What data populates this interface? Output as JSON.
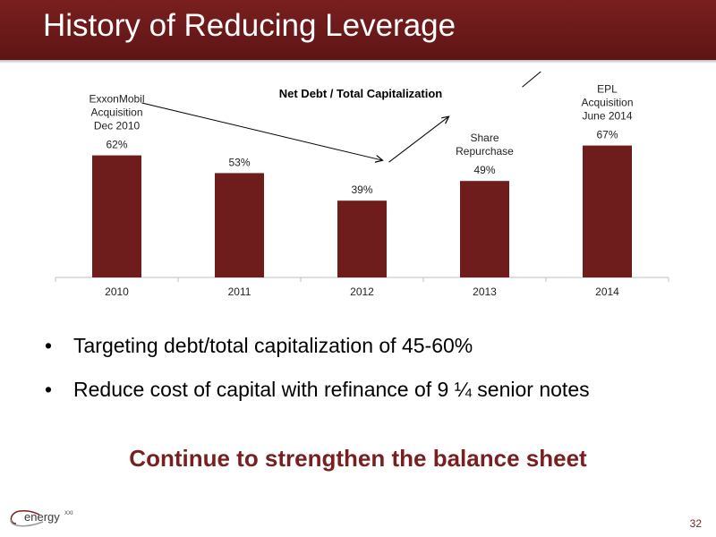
{
  "slide": {
    "title": "History of Reducing Leverage",
    "bullets": [
      "Targeting debt/total capitalization of 45-60%",
      "Reduce cost of capital with refinance of 9 ¼ senior notes"
    ],
    "callout": "Continue to strengthen the balance sheet",
    "page_number": "32",
    "logo_text": "energy",
    "logo_superscript": "XXI",
    "brand_color": "#7a1f1f"
  },
  "chart_data": {
    "type": "bar",
    "title": "Net Debt / Total Capitalization",
    "categories": [
      "2010",
      "2011",
      "2012",
      "2013",
      "2014"
    ],
    "values": [
      62,
      53,
      39,
      49,
      67
    ],
    "value_labels": [
      "62%",
      "53%",
      "39%",
      "49%",
      "67%"
    ],
    "ylim": [
      0,
      70
    ],
    "bar_color": "#6e1c1c",
    "annotations": [
      {
        "category": "2010",
        "lines": [
          "ExxonMobil",
          "Acquisition",
          "Dec 2010"
        ]
      },
      {
        "category": "2013",
        "lines": [
          "Share",
          "Repurchase"
        ]
      },
      {
        "category": "2014",
        "lines": [
          "EPL",
          "Acquisition",
          "June 2014"
        ]
      }
    ]
  }
}
